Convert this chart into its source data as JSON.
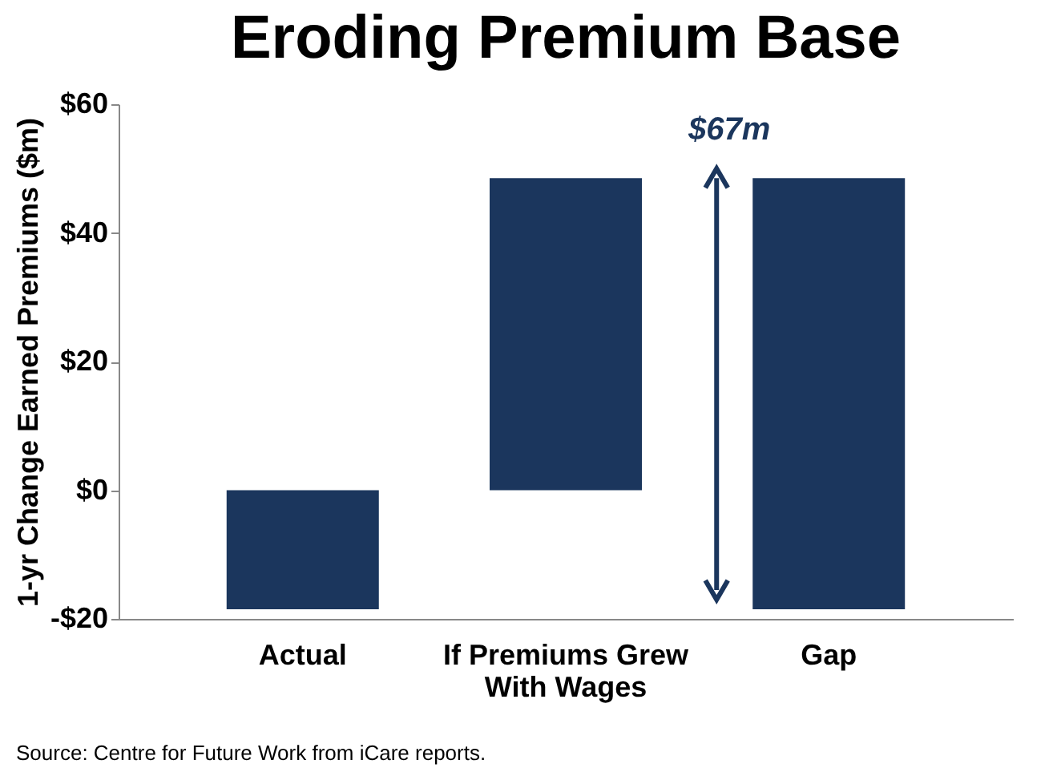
{
  "chart_data": {
    "type": "bar",
    "title": "Eroding Premium Base",
    "ylabel": "1-yr Change Earned Premiums ($m)",
    "categories": [
      "Actual",
      "If Premiums Grew With Wages",
      "Gap"
    ],
    "values": [
      -18.5,
      48.5,
      67
    ],
    "base": [
      0,
      0,
      -18.5
    ],
    "color": "#1b365d",
    "ylim": [
      -20,
      60
    ],
    "yticks": [
      {
        "value": -20,
        "label": "-$20"
      },
      {
        "value": 0,
        "label": "$0"
      },
      {
        "value": 20,
        "label": "$20"
      },
      {
        "value": 40,
        "label": "$40"
      },
      {
        "value": 60,
        "label": "$60"
      }
    ],
    "grid": false,
    "annotations": [
      {
        "text": "$67m",
        "x": "Gap",
        "y": 48.5
      },
      "Source: Centre for Future Work from iCare reports."
    ]
  }
}
